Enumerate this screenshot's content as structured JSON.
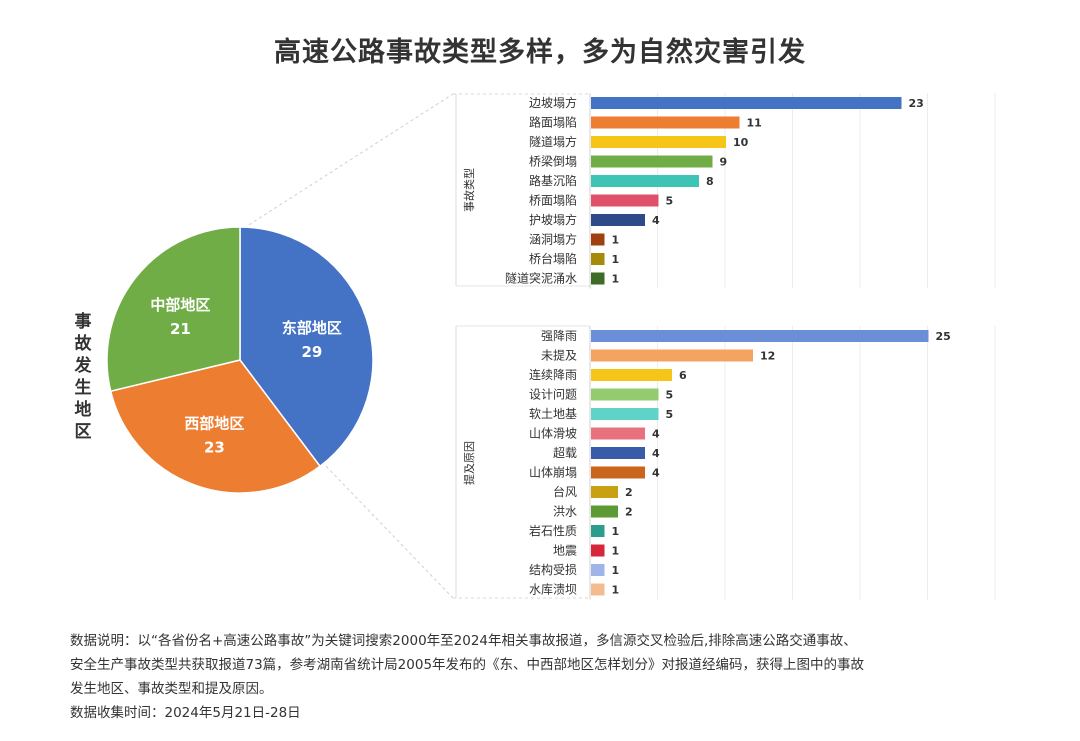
{
  "title": "高速公路事故类型多样，多为自然灾害引发",
  "chart_data": [
    {
      "type": "pie",
      "ylabel": "事故发生地区",
      "slices": [
        {
          "name": "东部地区",
          "value": 29,
          "color": "#4472c4"
        },
        {
          "name": "西部地区",
          "value": 23,
          "color": "#ed7d31"
        },
        {
          "name": "中部地区",
          "value": 21,
          "color": "#70ad47"
        }
      ]
    },
    {
      "type": "bar",
      "orientation": "horizontal",
      "ylabel": "事故类型",
      "xlim": [
        0,
        30
      ],
      "grid": true,
      "categories": [
        "边坡塌方",
        "路面塌陷",
        "隧道塌方",
        "桥梁倒塌",
        "路基沉陷",
        "桥面塌陷",
        "护坡塌方",
        "涵洞塌方",
        "桥台塌陷",
        "隧道突泥涌水"
      ],
      "values": [
        23,
        11,
        10,
        9,
        8,
        5,
        4,
        1,
        1,
        1
      ],
      "colors": [
        "#4472c4",
        "#ed7d31",
        "#f5c518",
        "#70ad47",
        "#3ec4b5",
        "#e0506a",
        "#2e4a8b",
        "#a0400e",
        "#a68a0a",
        "#3e6b25"
      ]
    },
    {
      "type": "bar",
      "orientation": "horizontal",
      "ylabel": "提及原因",
      "xlim": [
        0,
        30
      ],
      "grid": true,
      "categories": [
        "强降雨",
        "未提及",
        "连续降雨",
        "设计问题",
        "软土地基",
        "山体滑坡",
        "超载",
        "山体崩塌",
        "台风",
        "洪水",
        "岩石性质",
        "地震",
        "结构受损",
        "水库溃坝"
      ],
      "values": [
        25,
        12,
        6,
        5,
        5,
        4,
        4,
        4,
        2,
        2,
        1,
        1,
        1,
        1
      ],
      "colors": [
        "#6b8fd6",
        "#f4a460",
        "#f5c518",
        "#92cc6e",
        "#5fd3c7",
        "#e8717e",
        "#3a5ca8",
        "#c9651d",
        "#c9a011",
        "#5c9a35",
        "#2a9d8f",
        "#d6263c",
        "#9fb4e8",
        "#f4bc8e"
      ]
    }
  ],
  "notes": [
    "数据说明：以“各省份名+高速公路事故”为关键词搜索2000年至2024年相关事故报道，多信源交叉检验后,排除高速公路交通事故、",
    "安全生产事故类型共获取报道73篇，参考湖南省统计局2005年发布的《东、中西部地区怎样划分》对报道经编码，获得上图中的事故",
    "发生地区、事故类型和提及原因。",
    "数据收集时间：2024年5月21日-28日"
  ]
}
